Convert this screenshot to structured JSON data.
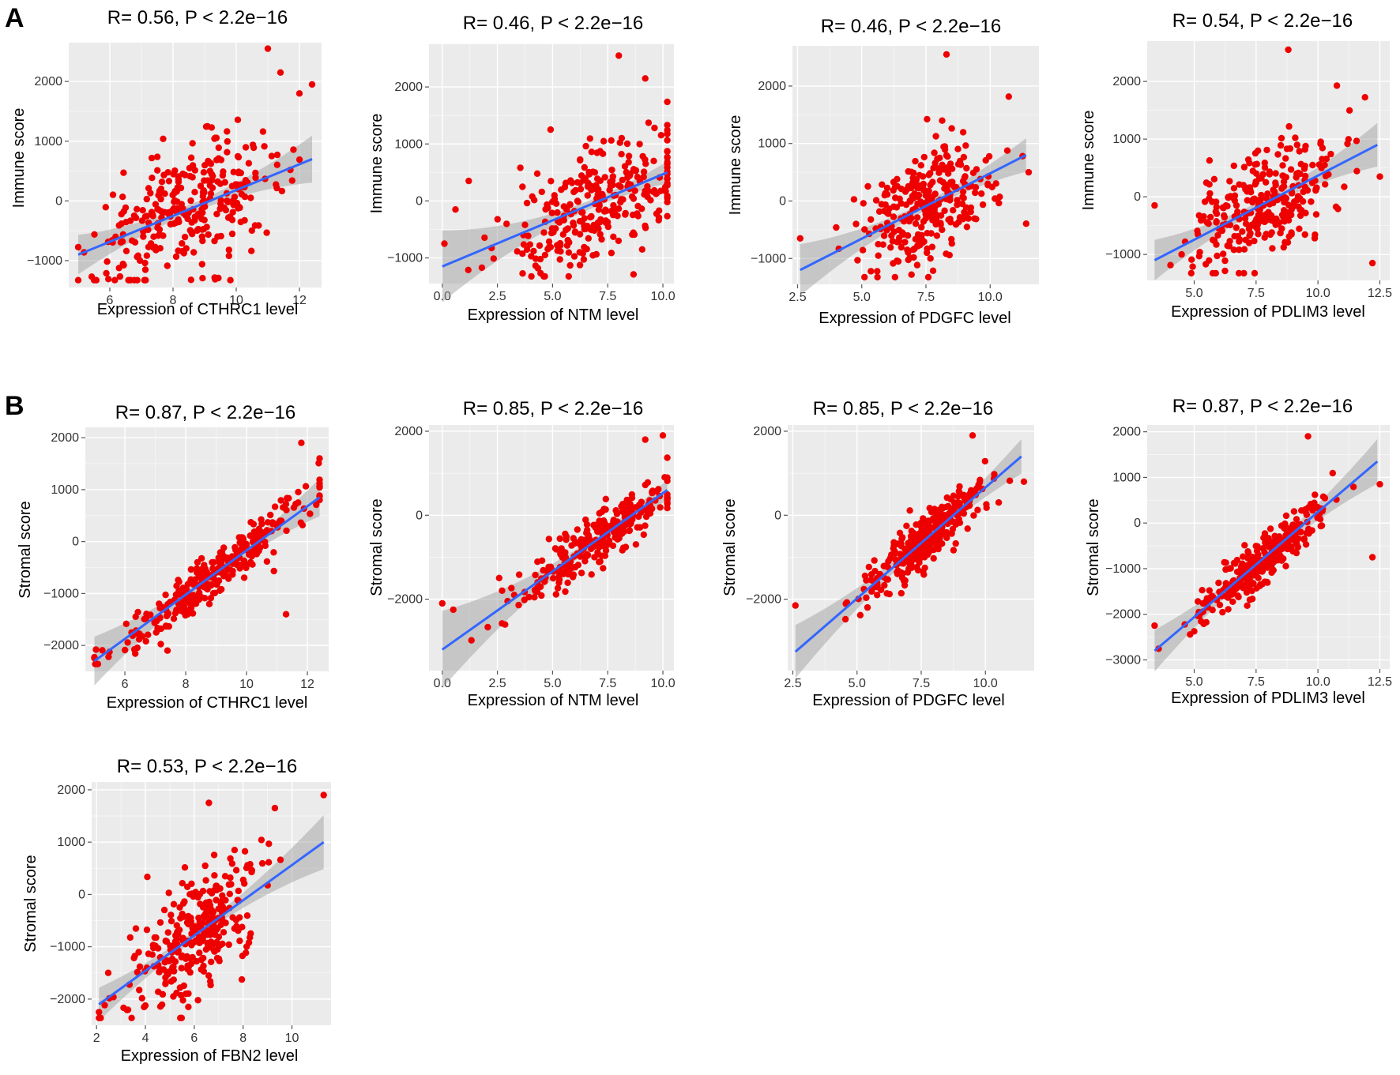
{
  "panel_letters": {
    "a": "A",
    "b": "B"
  },
  "colors": {
    "points": "#ee0000",
    "fit_line": "#3366ff",
    "confidence_band": "#9a9a9a",
    "panel_background": "#ebebeb",
    "grid": "#ffffff"
  },
  "chart_data": [
    {
      "id": "immune-cthrc1",
      "type": "scatter",
      "title": "R= 0.56, P < 2.2e−16",
      "xlabel": "Expression of CTHRC1 level",
      "ylabel": "Immune score",
      "xlim": [
        4.7,
        12.7
      ],
      "ylim": [
        -1450,
        2650
      ],
      "xticks": [
        6,
        8,
        10,
        12
      ],
      "xtick_labels": [
        "6",
        "8",
        "10",
        "12"
      ],
      "yticks": [
        -1000,
        0,
        1000,
        2000
      ],
      "ytick_labels": [
        "−1000",
        "0",
        "1000",
        "2000"
      ],
      "grid": true,
      "fit": {
        "x": [
          5.0,
          12.4
        ],
        "y": [
          -900,
          700
        ]
      },
      "n_points": 300,
      "x_center": 8.5,
      "x_sd": 1.5,
      "outliers": [
        [
          11.0,
          2550
        ],
        [
          12.4,
          1950
        ],
        [
          11.4,
          2150
        ],
        [
          12.0,
          1800
        ]
      ]
    },
    {
      "id": "immune-ntm",
      "type": "scatter",
      "title": "R= 0.46, P < 2.2e−16",
      "xlabel": "Expression of NTM level",
      "ylabel": "Immune score",
      "xlim": [
        -0.6,
        10.5
      ],
      "ylim": [
        -1450,
        2750
      ],
      "xticks": [
        0,
        2.5,
        5,
        7.5,
        10
      ],
      "xtick_labels": [
        "0.0",
        "2.5",
        "5.0",
        "7.5",
        "10.0"
      ],
      "yticks": [
        -1000,
        0,
        1000,
        2000
      ],
      "ytick_labels": [
        "−1000",
        "0",
        "1000",
        "2000"
      ],
      "grid": true,
      "fit": {
        "x": [
          0,
          10.2
        ],
        "y": [
          -1150,
          500
        ]
      },
      "n_points": 300,
      "x_center": 7.0,
      "x_sd": 2.0,
      "outliers": [
        [
          8.0,
          2550
        ],
        [
          9.2,
          2150
        ],
        [
          0.1,
          -750
        ],
        [
          0.6,
          -150
        ],
        [
          1.2,
          350
        ]
      ]
    },
    {
      "id": "immune-pdgfc",
      "type": "scatter",
      "title": "R= 0.46, P < 2.2e−16",
      "xlabel": "Expression of PDGFC level",
      "ylabel": "Immune score",
      "xlim": [
        2.3,
        11.9
      ],
      "ylim": [
        -1450,
        2700
      ],
      "xticks": [
        2.5,
        5,
        7.5,
        10
      ],
      "xtick_labels": [
        "2.5",
        "5.0",
        "7.5",
        "10.0"
      ],
      "yticks": [
        -1000,
        0,
        1000,
        2000
      ],
      "ytick_labels": [
        "−1000",
        "0",
        "1000",
        "2000"
      ],
      "grid": true,
      "fit": {
        "x": [
          2.6,
          11.4
        ],
        "y": [
          -1200,
          800
        ]
      },
      "n_points": 300,
      "x_center": 7.6,
      "x_sd": 1.3,
      "outliers": [
        [
          8.3,
          2550
        ],
        [
          11.5,
          500
        ],
        [
          2.6,
          -650
        ]
      ]
    },
    {
      "id": "immune-pdlim3",
      "type": "scatter",
      "title": "R= 0.54, P < 2.2e−16",
      "xlabel": "Expression of PDLIM3 level",
      "ylabel": "Immune score",
      "xlim": [
        3.1,
        12.9
      ],
      "ylim": [
        -1450,
        2700
      ],
      "xticks": [
        5,
        7.5,
        10,
        12.5
      ],
      "xtick_labels": [
        "5.0",
        "7.5",
        "10.0",
        "12.5"
      ],
      "yticks": [
        -1000,
        0,
        1000,
        2000
      ],
      "ytick_labels": [
        "−1000",
        "0",
        "1000",
        "2000"
      ],
      "grid": true,
      "fit": {
        "x": [
          3.4,
          12.4
        ],
        "y": [
          -1100,
          900
        ]
      },
      "n_points": 300,
      "x_center": 7.8,
      "x_sd": 1.4,
      "outliers": [
        [
          8.8,
          2550
        ],
        [
          12.2,
          -1150
        ],
        [
          12.5,
          350
        ],
        [
          3.4,
          -150
        ]
      ]
    },
    {
      "id": "stromal-cthrc1",
      "type": "scatter",
      "title": "R= 0.87, P < 2.2e−16",
      "xlabel": "Expression of CTHRC1 level",
      "ylabel": "Stromal score",
      "xlim": [
        4.7,
        12.7
      ],
      "ylim": [
        -2500,
        2200
      ],
      "xticks": [
        6,
        8,
        10,
        12
      ],
      "xtick_labels": [
        "6",
        "8",
        "10",
        "12"
      ],
      "yticks": [
        -2000,
        -1000,
        0,
        1000,
        2000
      ],
      "ytick_labels": [
        "−2000",
        "−1000",
        "0",
        "1000",
        "2000"
      ],
      "grid": true,
      "fit": {
        "x": [
          5.0,
          12.4
        ],
        "y": [
          -2300,
          850
        ]
      },
      "n_points": 300,
      "x_center": 9.0,
      "x_sd": 1.6,
      "outliers": [
        [
          11.3,
          -1400
        ],
        [
          12.4,
          1600
        ],
        [
          11.8,
          1900
        ],
        [
          7.4,
          -2100
        ]
      ]
    },
    {
      "id": "stromal-ntm",
      "type": "scatter",
      "title": "R= 0.85, P < 2.2e−16",
      "xlabel": "Expression of NTM level",
      "ylabel": "Stromal score",
      "xlim": [
        -0.6,
        10.5
      ],
      "ylim": [
        -3700,
        2150
      ],
      "xticks": [
        0,
        2.5,
        5,
        7.5,
        10
      ],
      "xtick_labels": [
        "0.0",
        "2.5",
        "5.0",
        "7.5",
        "10.0"
      ],
      "yticks": [
        -2000,
        0,
        2000
      ],
      "ytick_labels": [
        "−2000",
        "0",
        "2000"
      ],
      "grid": true,
      "fit": {
        "x": [
          0,
          10.2
        ],
        "y": [
          -3200,
          600
        ]
      },
      "n_points": 300,
      "x_center": 7.2,
      "x_sd": 1.8,
      "outliers": [
        [
          0.0,
          -2100
        ],
        [
          0.5,
          -2250
        ],
        [
          10.0,
          1900
        ],
        [
          9.2,
          1800
        ]
      ]
    },
    {
      "id": "stromal-pdgfc",
      "type": "scatter",
      "title": "R= 0.85, P < 2.2e−16",
      "xlabel": "Expression of PDGFC level",
      "ylabel": "Stromal score",
      "xlim": [
        2.3,
        11.9
      ],
      "ylim": [
        -3700,
        2150
      ],
      "xticks": [
        2.5,
        5,
        7.5,
        10
      ],
      "xtick_labels": [
        "2.5",
        "5.0",
        "7.5",
        "10.0"
      ],
      "yticks": [
        -2000,
        0,
        2000
      ],
      "ytick_labels": [
        "−2000",
        "0",
        "2000"
      ],
      "grid": true,
      "fit": {
        "x": [
          2.6,
          11.4
        ],
        "y": [
          -3250,
          1400
        ]
      },
      "n_points": 300,
      "x_center": 7.6,
      "x_sd": 1.2,
      "outliers": [
        [
          2.6,
          -2150
        ],
        [
          11.5,
          800
        ],
        [
          9.5,
          1900
        ]
      ]
    },
    {
      "id": "stromal-pdlim3",
      "type": "scatter",
      "title": "R= 0.87, P < 2.2e−16",
      "xlabel": "Expression of PDLIM3 level",
      "ylabel": "Stromal score",
      "xlim": [
        3.1,
        12.9
      ],
      "ylim": [
        -3200,
        2150
      ],
      "xticks": [
        5,
        7.5,
        10,
        12.5
      ],
      "xtick_labels": [
        "5.0",
        "7.5",
        "10.0",
        "12.5"
      ],
      "yticks": [
        -3000,
        -2000,
        -1000,
        0,
        1000,
        2000
      ],
      "ytick_labels": [
        "−3000",
        "−2000",
        "−1000",
        "0",
        "1000",
        "2000"
      ],
      "grid": true,
      "fit": {
        "x": [
          3.4,
          12.4
        ],
        "y": [
          -2800,
          1350
        ]
      },
      "n_points": 300,
      "x_center": 7.8,
      "x_sd": 1.3,
      "outliers": [
        [
          12.2,
          -750
        ],
        [
          12.5,
          850
        ],
        [
          3.4,
          -2250
        ],
        [
          9.6,
          1900
        ]
      ]
    },
    {
      "id": "stromal-fbn2",
      "type": "scatter",
      "title": "R= 0.53, P < 2.2e−16",
      "xlabel": "Expression of FBN2 level",
      "ylabel": "Stromal score",
      "xlim": [
        1.8,
        11.6
      ],
      "ylim": [
        -2500,
        2150
      ],
      "xticks": [
        2,
        4,
        6,
        8,
        10
      ],
      "xtick_labels": [
        "2",
        "4",
        "6",
        "8",
        "10"
      ],
      "yticks": [
        -2000,
        -1000,
        0,
        1000,
        2000
      ],
      "ytick_labels": [
        "−2000",
        "−1000",
        "0",
        "1000",
        "2000"
      ],
      "grid": true,
      "fit": {
        "x": [
          2.1,
          11.3
        ],
        "y": [
          -2100,
          1000
        ]
      },
      "n_points": 300,
      "x_center": 6.0,
      "x_sd": 1.3,
      "outliers": [
        [
          11.3,
          1900
        ],
        [
          2.1,
          -2250
        ],
        [
          6.6,
          1750
        ],
        [
          9.3,
          1650
        ]
      ]
    }
  ]
}
